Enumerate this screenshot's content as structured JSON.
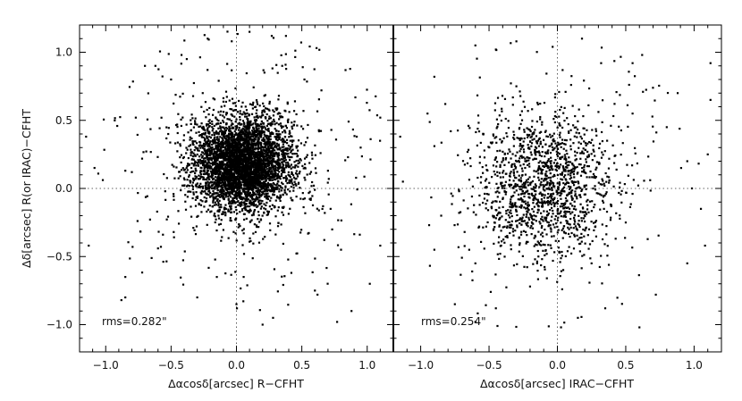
{
  "chart_data": [
    {
      "type": "scatter",
      "xlabel": "Δαcosδ[arcsec] R−CFHT",
      "ylabel": "Δδ[arcsec] R(or IRAC)−CFHT",
      "xlim": [
        -1.2,
        1.2
      ],
      "ylim": [
        -1.2,
        1.2
      ],
      "xticks": [
        "−1.0",
        "−0.5",
        "0.0",
        "0.5",
        "1.0"
      ],
      "yticks": [
        "−1.0",
        "−0.5",
        "0.0",
        "0.5",
        "1.0"
      ],
      "reference_lines": {
        "x": 0.0,
        "y": 0.0,
        "style": "dotted"
      },
      "annotation": "rms=0.282\"",
      "distribution": {
        "n_points": 4200,
        "center_x": 0.05,
        "center_y": 0.18,
        "sigma_x": 0.19,
        "sigma_y": 0.17,
        "n_outliers": 260
      },
      "points": [
        [
          0.1,
          1.15
        ],
        [
          -0.22,
          1.1
        ],
        [
          0.27,
          1.12
        ],
        [
          -0.38,
          0.95
        ],
        [
          -0.42,
          0.98
        ],
        [
          -0.62,
          0.9
        ],
        [
          -0.7,
          0.9
        ],
        [
          -0.5,
          0.8
        ],
        [
          -0.77,
          0.52
        ],
        [
          -0.8,
          0.12
        ],
        [
          -0.85,
          0.13
        ],
        [
          -1.15,
          0.38
        ],
        [
          -1.13,
          -0.42
        ],
        [
          -0.85,
          -0.65
        ],
        [
          -0.88,
          -0.82
        ],
        [
          -0.85,
          -0.8
        ],
        [
          -0.6,
          -0.44
        ],
        [
          -0.48,
          -0.32
        ],
        [
          0.0,
          -0.85
        ],
        [
          0.2,
          -1.0
        ],
        [
          0.28,
          -0.95
        ],
        [
          0.42,
          -0.62
        ],
        [
          0.62,
          -0.78
        ],
        [
          0.6,
          -0.75
        ],
        [
          0.77,
          -0.98
        ],
        [
          0.88,
          -0.9
        ],
        [
          1.02,
          -0.7
        ],
        [
          1.1,
          -0.42
        ],
        [
          0.95,
          0.3
        ],
        [
          0.92,
          0.38
        ],
        [
          1.1,
          0.52
        ],
        [
          0.65,
          0.72
        ],
        [
          0.52,
          0.8
        ],
        [
          0.7,
          0.13
        ],
        [
          0.8,
          -0.45
        ],
        [
          0.72,
          -0.15
        ],
        [
          -0.3,
          -0.8
        ],
        [
          -0.15,
          -0.65
        ],
        [
          0.35,
          0.9
        ]
      ]
    },
    {
      "type": "scatter",
      "xlabel": "Δαcosδ[arcsec] IRAC−CFHT",
      "ylabel": "",
      "xlim": [
        -1.2,
        1.2
      ],
      "ylim": [
        -1.2,
        1.2
      ],
      "xticks": [
        "−1.0",
        "−0.5",
        "0.0",
        "0.5",
        "1.0"
      ],
      "yticks": [],
      "reference_lines": {
        "x": 0.0,
        "y": 0.0,
        "style": "dotted"
      },
      "annotation": "rms=0.254\"",
      "distribution": {
        "n_points": 1400,
        "center_x": -0.08,
        "center_y": 0.02,
        "sigma_x": 0.25,
        "sigma_y": 0.27,
        "n_outliers": 120
      },
      "points": [
        [
          -0.6,
          1.05
        ],
        [
          -0.45,
          1.02
        ],
        [
          -0.3,
          1.08
        ],
        [
          0.18,
          1.1
        ],
        [
          0.32,
          0.92
        ],
        [
          0.55,
          0.92
        ],
        [
          0.62,
          0.98
        ],
        [
          1.12,
          0.92
        ],
        [
          0.88,
          0.7
        ],
        [
          1.12,
          0.65
        ],
        [
          -0.9,
          0.82
        ],
        [
          -0.82,
          0.62
        ],
        [
          -0.78,
          0.42
        ],
        [
          -1.15,
          0.38
        ],
        [
          -1.13,
          0.05
        ],
        [
          -0.9,
          -0.45
        ],
        [
          -0.6,
          -0.55
        ],
        [
          -0.75,
          -0.85
        ],
        [
          -0.6,
          -0.98
        ],
        [
          -0.45,
          -0.88
        ],
        [
          -0.2,
          -0.72
        ],
        [
          0.15,
          -0.95
        ],
        [
          0.35,
          -0.88
        ],
        [
          0.6,
          -1.02
        ],
        [
          0.72,
          -0.78
        ],
        [
          0.95,
          -0.55
        ],
        [
          1.08,
          -0.42
        ],
        [
          1.05,
          -0.15
        ],
        [
          0.95,
          0.2
        ],
        [
          1.1,
          0.25
        ],
        [
          0.8,
          0.45
        ],
        [
          0.55,
          0.55
        ],
        [
          -0.85,
          -0.2
        ],
        [
          -0.95,
          0.55
        ],
        [
          0.25,
          -0.55
        ],
        [
          0.5,
          -0.25
        ],
        [
          -0.3,
          0.75
        ]
      ]
    }
  ]
}
